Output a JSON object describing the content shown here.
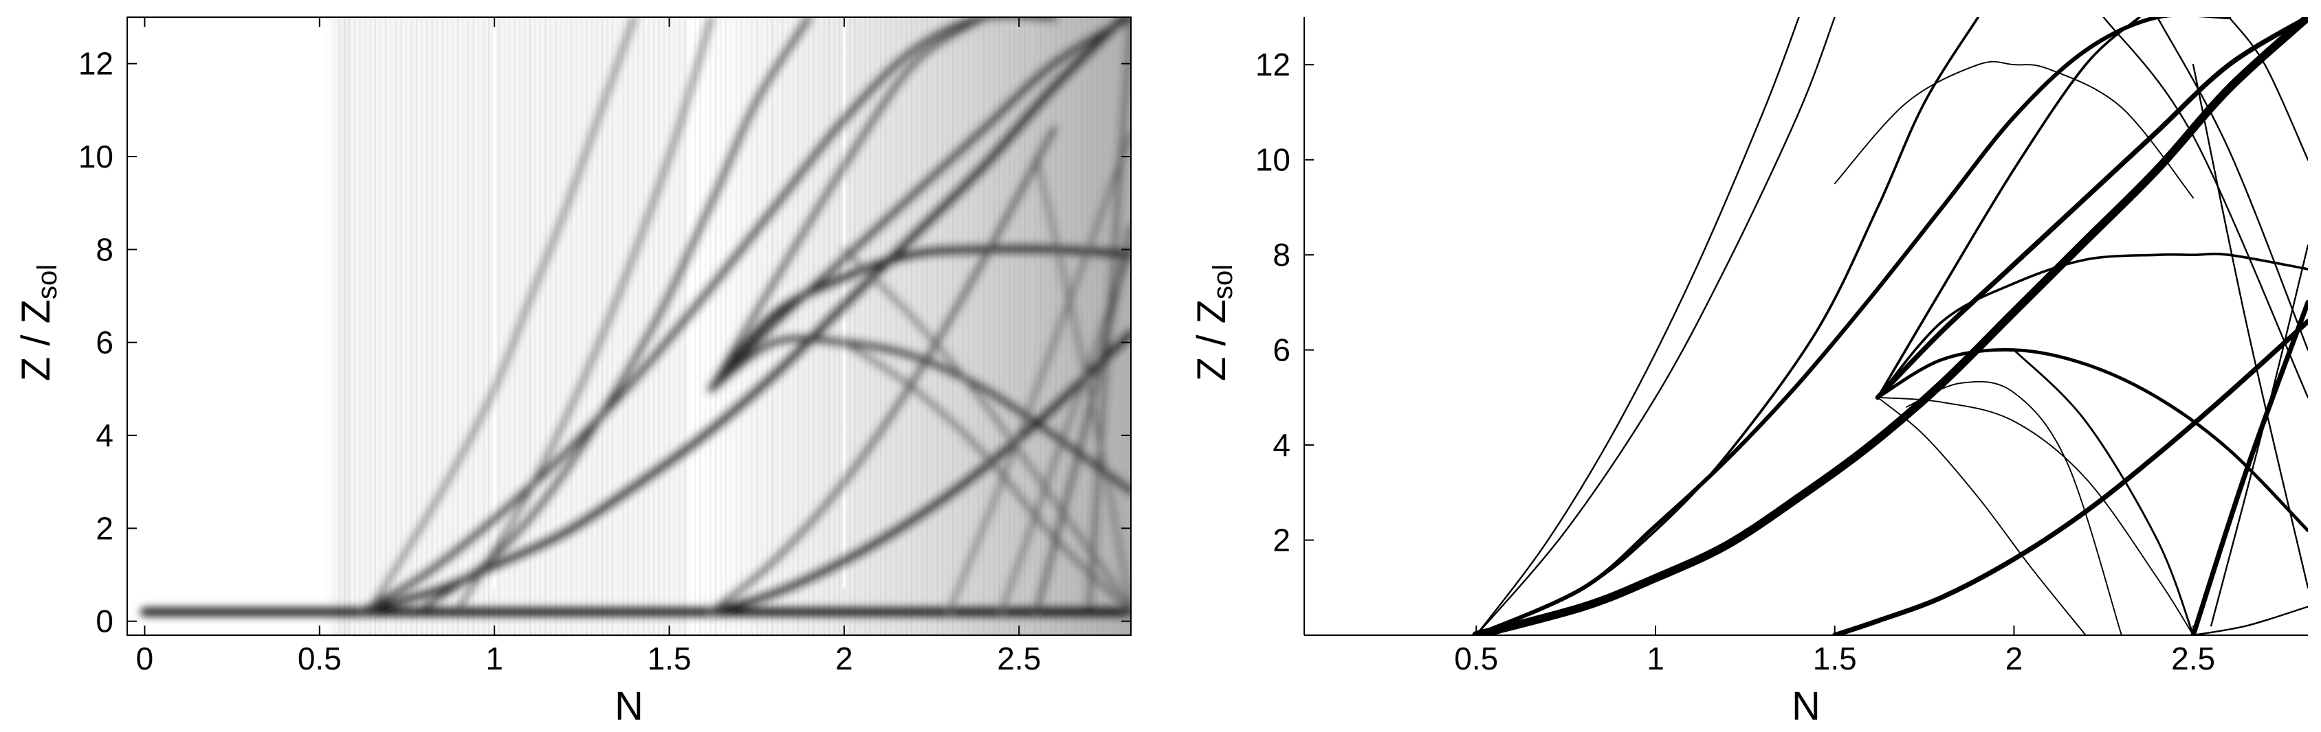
{
  "chart_data": [
    {
      "type": "heatmap",
      "xlabel": "N",
      "ylabel": {
        "main": "Z  /  Z",
        "subscript": "sol"
      },
      "xlim": [
        -0.05,
        2.82
      ],
      "ylim": [
        -0.3,
        13
      ],
      "xticks": [
        0,
        0.5,
        1,
        1.5,
        2,
        2.5
      ],
      "xtick_labels": [
        "0",
        "0.5",
        "1",
        "1.5",
        "2",
        "2.5"
      ],
      "yticks": [
        0,
        2,
        4,
        6,
        8,
        10,
        12
      ],
      "ytick_labels": [
        "0",
        "2",
        "4",
        "6",
        "8",
        "10",
        "12"
      ],
      "colormap": [
        "#ffffff",
        "#000000"
      ],
      "grid": false,
      "bands": [
        {
          "x": [
            0.0,
            2.82
          ],
          "y": [
            0.2,
            0.2
          ],
          "width": 0.18,
          "shade": 1.0
        },
        {
          "x": [
            0.62,
            0.85,
            1.0,
            1.2,
            1.4,
            1.6,
            1.8,
            2.0,
            2.2,
            2.4,
            2.6,
            2.8
          ],
          "y": [
            0.2,
            0.7,
            1.2,
            1.9,
            2.9,
            4.0,
            5.3,
            6.8,
            8.3,
            9.8,
            11.5,
            13.0
          ],
          "width": 0.14,
          "shade": 0.9
        },
        {
          "x": [
            0.62,
            0.8,
            1.0,
            1.2,
            1.4,
            1.6,
            1.8,
            2.0,
            2.2,
            2.4,
            2.6
          ],
          "y": [
            0.2,
            1.0,
            2.2,
            3.6,
            5.2,
            7.0,
            8.9,
            10.8,
            12.3,
            13.0,
            13.0
          ],
          "width": 0.12,
          "shade": 0.85
        },
        {
          "x": [
            0.65,
            0.85,
            1.0,
            1.1,
            1.2,
            1.3,
            1.4
          ],
          "y": [
            0.3,
            2.8,
            5.0,
            6.9,
            8.8,
            10.9,
            13.0
          ],
          "width": 0.08,
          "shade": 0.7
        },
        {
          "x": [
            0.8,
            1.0,
            1.2,
            1.45,
            1.62,
            1.75,
            1.9
          ],
          "y": [
            0.3,
            1.4,
            3.2,
            6.3,
            9.0,
            11.2,
            13.0
          ],
          "width": 0.1,
          "shade": 0.85
        },
        {
          "x": [
            0.9,
            1.1,
            1.3,
            1.5,
            1.62
          ],
          "y": [
            0.3,
            2.8,
            6.0,
            10.0,
            13.0
          ],
          "width": 0.08,
          "shade": 0.75
        },
        {
          "x": [
            1.62,
            1.8,
            2.0,
            2.2,
            2.4,
            2.6,
            2.82
          ],
          "y": [
            5.0,
            6.0,
            6.0,
            5.7,
            5.0,
            4.0,
            2.8
          ],
          "width": 0.12,
          "shade": 0.85
        },
        {
          "x": [
            1.62,
            1.8,
            2.0,
            2.2,
            2.4,
            2.6,
            2.82
          ],
          "y": [
            5.0,
            6.6,
            7.4,
            7.9,
            8.0,
            8.0,
            7.9
          ],
          "width": 0.14,
          "shade": 0.9
        },
        {
          "x": [
            1.62,
            1.8,
            2.0,
            2.2,
            2.4,
            2.6,
            2.82
          ],
          "y": [
            5.0,
            6.4,
            7.8,
            9.2,
            10.6,
            12.0,
            13.0
          ],
          "width": 0.12,
          "shade": 0.85
        },
        {
          "x": [
            1.62,
            1.8,
            2.0,
            2.2,
            2.4
          ],
          "y": [
            5.0,
            7.3,
            9.8,
            12.0,
            13.0
          ],
          "width": 0.1,
          "shade": 0.8
        },
        {
          "x": [
            1.62,
            1.8,
            2.0,
            2.2,
            2.4,
            2.6,
            2.82
          ],
          "y": [
            0.2,
            0.6,
            1.3,
            2.2,
            3.3,
            4.6,
            6.2
          ],
          "width": 0.14,
          "shade": 0.9
        },
        {
          "x": [
            1.62,
            1.8,
            2.0,
            2.2,
            2.4,
            2.6
          ],
          "y": [
            0.2,
            1.3,
            3.0,
            5.2,
            7.8,
            10.6
          ],
          "width": 0.1,
          "shade": 0.75
        },
        {
          "x": [
            2.0,
            2.2,
            2.4,
            2.6,
            2.82
          ],
          "y": [
            6.0,
            5.0,
            3.6,
            1.8,
            0.2
          ],
          "width": 0.08,
          "shade": 0.7
        },
        {
          "x": [
            2.0,
            2.2,
            2.4,
            2.6,
            2.82
          ],
          "y": [
            8.0,
            6.5,
            4.7,
            2.6,
            0.3
          ],
          "width": 0.08,
          "shade": 0.65
        },
        {
          "x": [
            2.3,
            2.45,
            2.6,
            2.82
          ],
          "y": [
            0.2,
            3.0,
            6.0,
            10.5
          ],
          "width": 0.07,
          "shade": 0.7
        },
        {
          "x": [
            2.45,
            2.6,
            2.82
          ],
          "y": [
            0.2,
            3.4,
            8.0
          ],
          "width": 0.07,
          "shade": 0.7
        },
        {
          "x": [
            2.55,
            2.7,
            2.82
          ],
          "y": [
            0.2,
            4.5,
            8.5
          ],
          "width": 0.08,
          "shade": 0.8
        },
        {
          "x": [
            2.7,
            2.82
          ],
          "y": [
            0.3,
            13.0
          ],
          "width": 0.06,
          "shade": 0.85
        },
        {
          "x": [
            2.55,
            2.7,
            2.82
          ],
          "y": [
            10.0,
            5.0,
            0.3
          ],
          "width": 0.06,
          "shade": 0.7
        }
      ]
    },
    {
      "type": "line",
      "xlabel": "N",
      "ylabel": {
        "main": "Z  /  Z",
        "subscript": "sol"
      },
      "xlim": [
        0.02,
        2.82
      ],
      "ylim": [
        0,
        13
      ],
      "xticks": [
        0.5,
        1,
        1.5,
        2,
        2.5
      ],
      "xtick_labels": [
        "0.5",
        "1",
        "1.5",
        "2",
        "2.5"
      ],
      "yticks": [
        2,
        4,
        6,
        8,
        10,
        12
      ],
      "ytick_labels": [
        "2",
        "4",
        "6",
        "8",
        "10",
        "12"
      ],
      "grid": false,
      "series": [
        {
          "weight": 5.0,
          "x": [
            0.5,
            0.8,
            1.0,
            1.2,
            1.4,
            1.6,
            1.8,
            2.0,
            2.2,
            2.4,
            2.6,
            2.82
          ],
          "y": [
            0.0,
            0.6,
            1.2,
            1.9,
            2.9,
            4.0,
            5.3,
            6.8,
            8.3,
            9.8,
            11.5,
            13.0
          ]
        },
        {
          "weight": 2.5,
          "x": [
            0.5,
            0.8,
            1.0,
            1.2,
            1.4,
            1.6,
            1.8,
            2.0,
            2.2,
            2.4,
            2.6
          ],
          "y": [
            0.0,
            1.0,
            2.3,
            3.7,
            5.3,
            7.1,
            9.0,
            10.9,
            12.3,
            13.0,
            13.0
          ]
        },
        {
          "weight": 1.0,
          "x": [
            0.5,
            0.7,
            0.9,
            1.1,
            1.3,
            1.4
          ],
          "y": [
            0.0,
            2.0,
            4.5,
            7.5,
            11.0,
            13.0
          ]
        },
        {
          "weight": 1.0,
          "x": [
            0.5,
            0.75,
            1.0,
            1.2,
            1.4,
            1.5
          ],
          "y": [
            0.0,
            2.2,
            5.0,
            7.8,
            11.0,
            13.0
          ]
        },
        {
          "weight": 1.5,
          "x": [
            0.5,
            0.8,
            1.0,
            1.2,
            1.45,
            1.62,
            1.75,
            1.9
          ],
          "y": [
            0.0,
            1.0,
            2.2,
            3.8,
            6.4,
            9.0,
            11.2,
            13.0
          ]
        },
        {
          "weight": 3.0,
          "x": [
            1.5,
            1.62,
            1.8,
            2.0,
            2.2,
            2.4,
            2.6,
            2.82
          ],
          "y": [
            0.0,
            0.3,
            0.8,
            1.6,
            2.6,
            3.8,
            5.1,
            6.6
          ]
        },
        {
          "weight": 2.0,
          "x": [
            1.62,
            1.8,
            2.0,
            2.2,
            2.4,
            2.6,
            2.82
          ],
          "y": [
            5.0,
            5.8,
            6.0,
            5.7,
            5.0,
            3.9,
            2.2
          ]
        },
        {
          "weight": 1.5,
          "x": [
            1.62,
            1.8,
            2.0,
            2.2,
            2.4,
            2.5,
            2.6,
            2.82
          ],
          "y": [
            5.0,
            6.6,
            7.4,
            7.9,
            8.0,
            8.0,
            8.0,
            7.7
          ]
        },
        {
          "weight": 3.0,
          "x": [
            1.62,
            1.8,
            2.0,
            2.2,
            2.4,
            2.6,
            2.82
          ],
          "y": [
            5.0,
            6.4,
            7.8,
            9.2,
            10.6,
            12.0,
            13.0
          ]
        },
        {
          "weight": 1.5,
          "x": [
            1.62,
            1.8,
            2.0,
            2.2,
            2.35
          ],
          "y": [
            5.0,
            7.3,
            9.8,
            12.0,
            13.0
          ]
        },
        {
          "weight": 0.8,
          "x": [
            1.62,
            1.8,
            2.0,
            2.2,
            2.4,
            2.5
          ],
          "y": [
            5.0,
            4.9,
            4.5,
            3.3,
            1.2,
            0.0
          ]
        },
        {
          "weight": 0.8,
          "x": [
            1.62,
            1.75,
            1.9,
            2.05,
            2.2
          ],
          "y": [
            5.0,
            4.2,
            2.9,
            1.4,
            0.0
          ]
        },
        {
          "weight": 0.8,
          "x": [
            1.7,
            1.85,
            2.0,
            2.15,
            2.3
          ],
          "y": [
            4.8,
            5.3,
            5.1,
            3.6,
            0.0
          ]
        },
        {
          "weight": 0.8,
          "x": [
            1.5,
            1.7,
            1.9,
            2.0,
            2.1,
            2.3,
            2.5
          ],
          "y": [
            9.5,
            11.2,
            12.0,
            12.0,
            11.9,
            11.1,
            9.2
          ]
        },
        {
          "weight": 1.2,
          "x": [
            2.0,
            2.2,
            2.4,
            2.5
          ],
          "y": [
            6.0,
            4.5,
            2.0,
            0.0
          ]
        },
        {
          "weight": 1.0,
          "x": [
            2.5,
            2.65,
            2.82
          ],
          "y": [
            0.0,
            0.2,
            0.6
          ]
        },
        {
          "weight": 1.0,
          "x": [
            2.55,
            2.7,
            2.82
          ],
          "y": [
            0.2,
            4.5,
            8.2
          ]
        },
        {
          "weight": 3.0,
          "x": [
            2.5,
            2.65,
            2.82
          ],
          "y": [
            0.0,
            3.5,
            7.0
          ]
        },
        {
          "weight": 1.0,
          "x": [
            2.5,
            2.65,
            2.82
          ],
          "y": [
            12.0,
            6.5,
            1.0
          ]
        },
        {
          "weight": 1.0,
          "x": [
            2.6,
            2.7,
            2.82
          ],
          "y": [
            13.0,
            12.0,
            10.0
          ]
        },
        {
          "weight": 1.0,
          "x": [
            2.4,
            2.6,
            2.82
          ],
          "y": [
            13.0,
            10.2,
            6.0
          ]
        },
        {
          "weight": 1.0,
          "x": [
            2.25,
            2.5,
            2.82
          ],
          "y": [
            13.0,
            10.5,
            5.0
          ]
        }
      ]
    }
  ]
}
